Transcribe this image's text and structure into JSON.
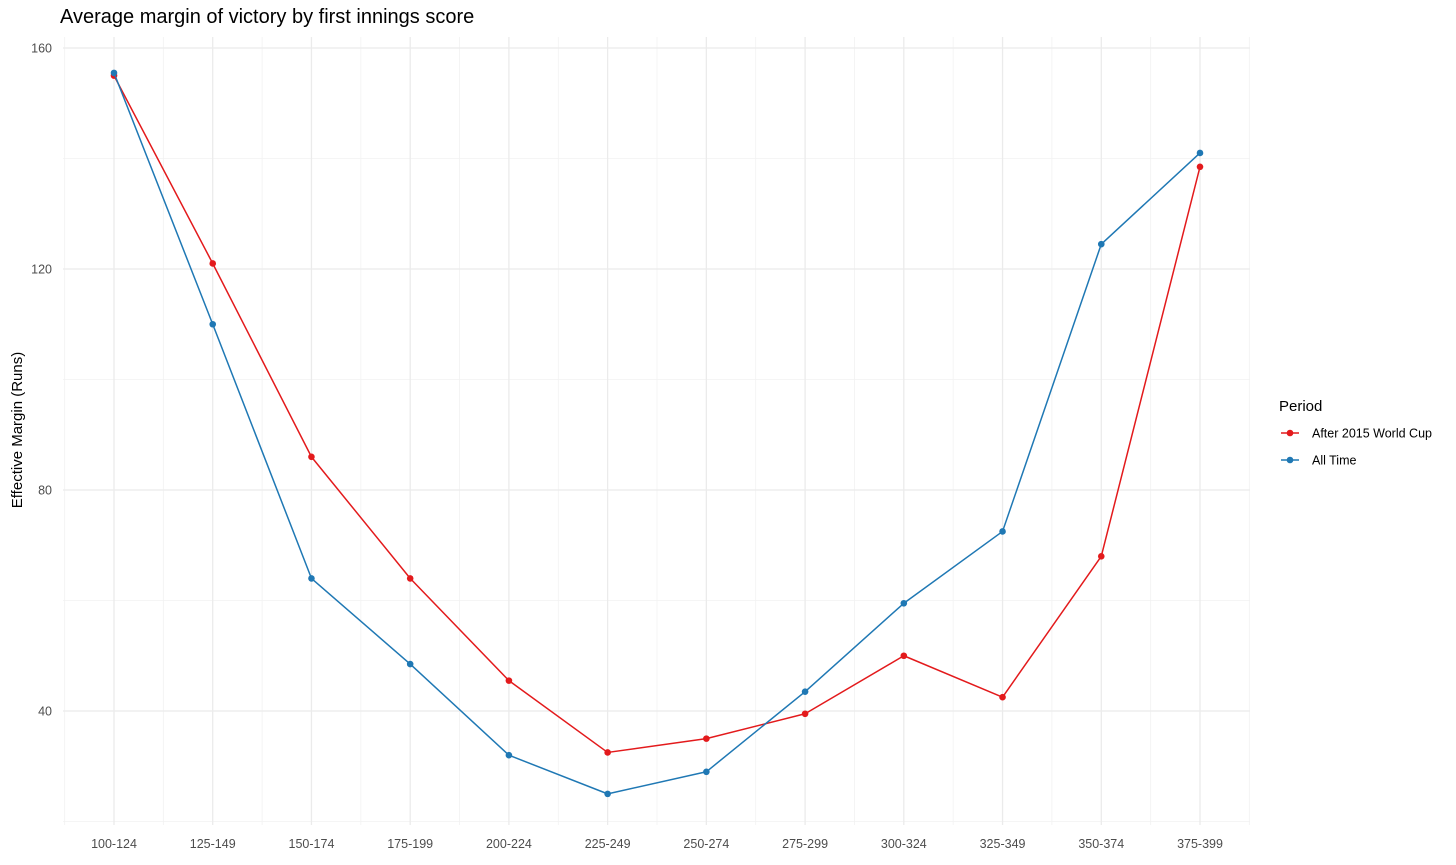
{
  "chart_data": {
    "type": "line",
    "title": "Average margin of victory by first innings score",
    "xlabel": "",
    "ylabel": "Effective Margin (Runs)",
    "categories": [
      "100-124",
      "125-149",
      "150-174",
      "175-199",
      "200-224",
      "225-249",
      "250-274",
      "275-299",
      "300-324",
      "325-349",
      "350-374",
      "375-399"
    ],
    "yticks": [
      40,
      80,
      120,
      160
    ],
    "ylim": [
      20,
      162
    ],
    "grid": true,
    "legend": {
      "title": "Period",
      "position": "right"
    },
    "series": [
      {
        "name": "After 2015 World Cup",
        "color": "#e31a1c",
        "values": [
          155,
          121,
          86,
          64,
          45.5,
          32.5,
          35,
          39.5,
          50,
          42.5,
          68,
          138.5
        ]
      },
      {
        "name": "All Time",
        "color": "#1f78b4",
        "values": [
          155.5,
          110,
          64,
          48.5,
          32,
          25,
          29,
          43.5,
          59.5,
          72.5,
          124.5,
          141
        ]
      }
    ]
  }
}
